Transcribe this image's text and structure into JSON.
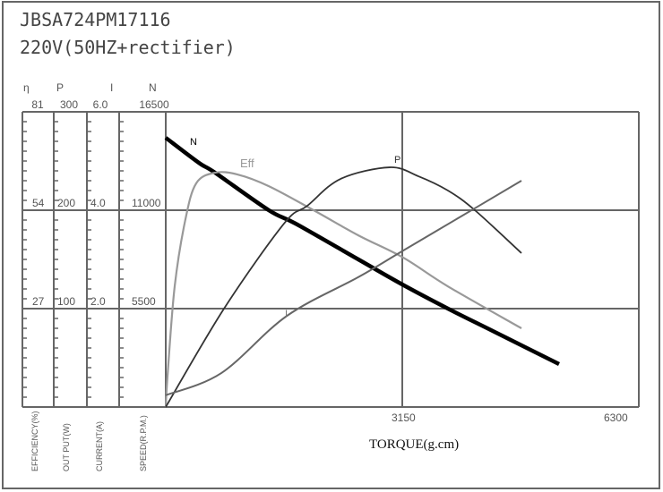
{
  "title": "JBSA724PM17116",
  "subtitle": "220V(50HZ+rectifier)",
  "chart_data": {
    "type": "line",
    "xlabel": "TORQUE(g.cm)",
    "xlim": [
      0,
      6300
    ],
    "x_ticks": [
      "3150",
      "6300"
    ],
    "grid": true,
    "axes": [
      {
        "symbol": "η",
        "label": "EFFICIENCY(%)",
        "max": 81,
        "ticks": [
          "81",
          "54",
          "27"
        ]
      },
      {
        "symbol": "P",
        "label": "OUT PUT(W)",
        "max": 300,
        "ticks": [
          "300",
          "200",
          "100"
        ]
      },
      {
        "symbol": "I",
        "label": "CURRENT(A)",
        "max": 6.0,
        "ticks": [
          "6.0",
          "4.0",
          "2.0"
        ]
      },
      {
        "symbol": "N",
        "label": "SPEED(R.P.M.)",
        "max": 16500,
        "ticks": [
          "16500",
          "11000",
          "5500"
        ]
      }
    ],
    "series": [
      {
        "name": "N",
        "axis": 3,
        "color": "#000000",
        "x": [
          0,
          441,
          656,
          1372,
          1730,
          2565,
          3150,
          3758,
          4355,
          5238
        ],
        "y": [
          15050,
          13650,
          13100,
          11000,
          10250,
          8250,
          6850,
          5500,
          4250,
          2400
        ]
      },
      {
        "name": "Eff",
        "axis": 0,
        "color": "#999999",
        "x": [
          0,
          24,
          119,
          262,
          406,
          656,
          955,
          1372,
          1969,
          2565,
          3162,
          3758,
          4737
        ],
        "y": [
          0,
          8.6,
          33.1,
          51.5,
          61.4,
          64.3,
          63.8,
          60.6,
          54.0,
          47.1,
          41.0,
          33.1,
          21.6
        ]
      },
      {
        "name": "P",
        "axis": 1,
        "color": "#333333",
        "x": [
          0,
          776,
          1575,
          1885,
          2327,
          2983,
          3365,
          3758,
          4117,
          4737
        ],
        "y": [
          0,
          100,
          186.4,
          204.5,
          231.8,
          243.6,
          234.5,
          220,
          200,
          156.4
        ]
      },
      {
        "name": "I",
        "axis": 2,
        "color": "#666666",
        "x": [
          0,
          740,
          1611,
          2565,
          3162,
          4117,
          4737
        ],
        "y": [
          0.24,
          0.69,
          1.85,
          2.64,
          3.18,
          4.04,
          4.6
        ]
      }
    ]
  }
}
